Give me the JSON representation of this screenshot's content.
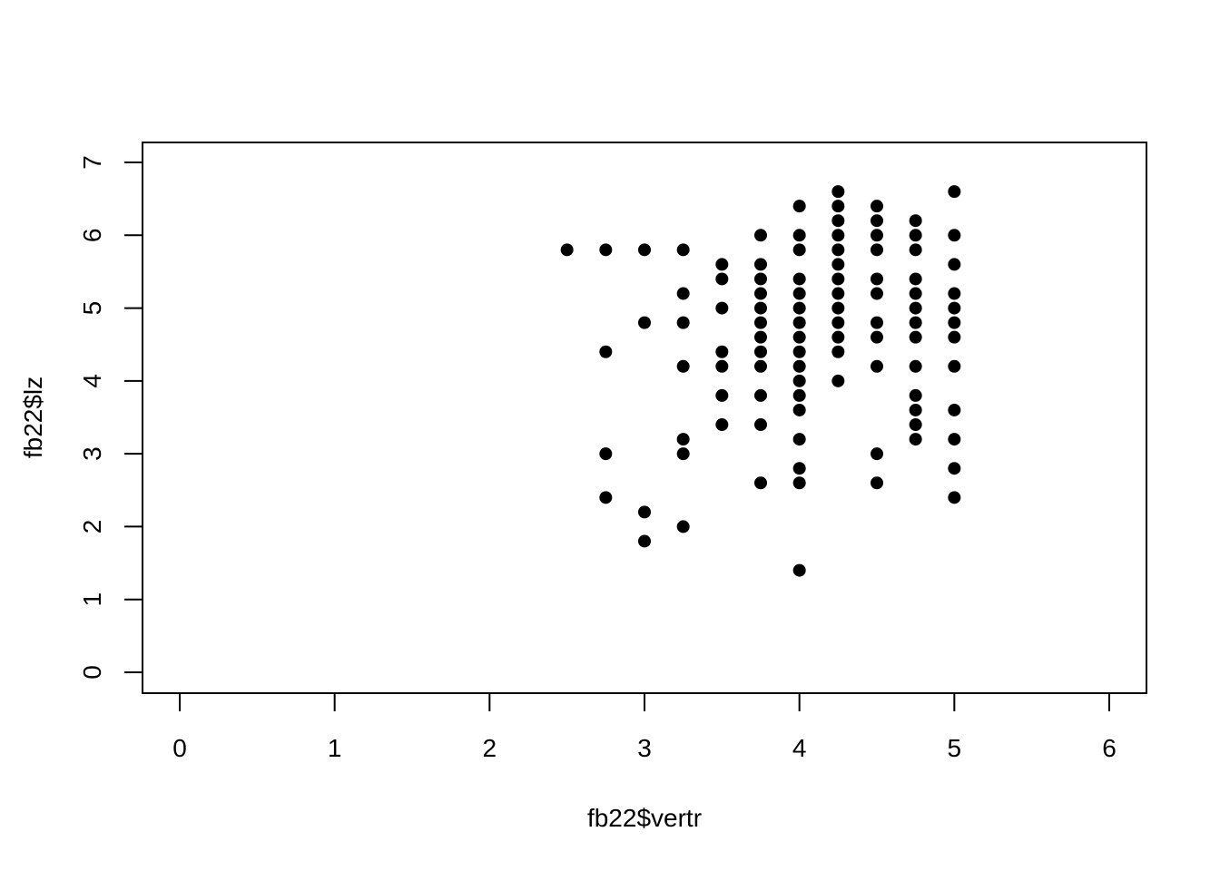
{
  "chart_data": {
    "type": "scatter",
    "xlabel": "fb22$vertr",
    "ylabel": "fb22$lz",
    "xlim": [
      0,
      6
    ],
    "ylim": [
      0,
      7
    ],
    "x_ticks": [
      "0",
      "1",
      "2",
      "3",
      "4",
      "5",
      "6"
    ],
    "y_ticks": [
      "0",
      "1",
      "2",
      "3",
      "4",
      "5",
      "6",
      "7"
    ],
    "grid": false,
    "point_color": "#000000",
    "points": [
      [
        2.5,
        5.8
      ],
      [
        2.75,
        5.8
      ],
      [
        2.75,
        4.4
      ],
      [
        2.75,
        3.0
      ],
      [
        2.75,
        2.4
      ],
      [
        3.0,
        5.8
      ],
      [
        3.0,
        4.8
      ],
      [
        3.0,
        2.2
      ],
      [
        3.0,
        1.8
      ],
      [
        3.25,
        5.8
      ],
      [
        3.25,
        5.2
      ],
      [
        3.25,
        4.8
      ],
      [
        3.25,
        4.2
      ],
      [
        3.25,
        3.2
      ],
      [
        3.25,
        3.0
      ],
      [
        3.25,
        2.0
      ],
      [
        3.5,
        5.6
      ],
      [
        3.5,
        5.4
      ],
      [
        3.5,
        5.0
      ],
      [
        3.5,
        4.4
      ],
      [
        3.5,
        4.2
      ],
      [
        3.5,
        3.8
      ],
      [
        3.5,
        3.4
      ],
      [
        3.75,
        6.0
      ],
      [
        3.75,
        5.6
      ],
      [
        3.75,
        5.4
      ],
      [
        3.75,
        5.2
      ],
      [
        3.75,
        5.0
      ],
      [
        3.75,
        4.8
      ],
      [
        3.75,
        4.6
      ],
      [
        3.75,
        4.4
      ],
      [
        3.75,
        4.2
      ],
      [
        3.75,
        3.8
      ],
      [
        3.75,
        3.4
      ],
      [
        3.75,
        2.6
      ],
      [
        4.0,
        6.4
      ],
      [
        4.0,
        6.0
      ],
      [
        4.0,
        5.8
      ],
      [
        4.0,
        5.4
      ],
      [
        4.0,
        5.2
      ],
      [
        4.0,
        5.0
      ],
      [
        4.0,
        4.8
      ],
      [
        4.0,
        4.6
      ],
      [
        4.0,
        4.4
      ],
      [
        4.0,
        4.2
      ],
      [
        4.0,
        4.0
      ],
      [
        4.0,
        3.8
      ],
      [
        4.0,
        3.6
      ],
      [
        4.0,
        3.2
      ],
      [
        4.0,
        2.8
      ],
      [
        4.0,
        2.6
      ],
      [
        4.0,
        1.4
      ],
      [
        4.25,
        6.6
      ],
      [
        4.25,
        6.4
      ],
      [
        4.25,
        6.2
      ],
      [
        4.25,
        6.0
      ],
      [
        4.25,
        5.8
      ],
      [
        4.25,
        5.6
      ],
      [
        4.25,
        5.4
      ],
      [
        4.25,
        5.2
      ],
      [
        4.25,
        5.0
      ],
      [
        4.25,
        4.8
      ],
      [
        4.25,
        4.6
      ],
      [
        4.25,
        4.4
      ],
      [
        4.25,
        4.0
      ],
      [
        4.5,
        6.4
      ],
      [
        4.5,
        6.2
      ],
      [
        4.5,
        6.0
      ],
      [
        4.5,
        5.8
      ],
      [
        4.5,
        5.4
      ],
      [
        4.5,
        5.2
      ],
      [
        4.5,
        4.8
      ],
      [
        4.5,
        4.6
      ],
      [
        4.5,
        4.2
      ],
      [
        4.5,
        3.0
      ],
      [
        4.5,
        2.6
      ],
      [
        4.75,
        6.2
      ],
      [
        4.75,
        6.0
      ],
      [
        4.75,
        5.8
      ],
      [
        4.75,
        5.4
      ],
      [
        4.75,
        5.2
      ],
      [
        4.75,
        5.0
      ],
      [
        4.75,
        4.8
      ],
      [
        4.75,
        4.6
      ],
      [
        4.75,
        4.2
      ],
      [
        4.75,
        3.8
      ],
      [
        4.75,
        3.6
      ],
      [
        4.75,
        3.4
      ],
      [
        4.75,
        3.2
      ],
      [
        5.0,
        6.6
      ],
      [
        5.0,
        6.0
      ],
      [
        5.0,
        5.6
      ],
      [
        5.0,
        5.2
      ],
      [
        5.0,
        5.0
      ],
      [
        5.0,
        4.8
      ],
      [
        5.0,
        4.6
      ],
      [
        5.0,
        4.2
      ],
      [
        5.0,
        3.6
      ],
      [
        5.0,
        3.2
      ],
      [
        5.0,
        2.8
      ],
      [
        5.0,
        2.4
      ]
    ]
  }
}
